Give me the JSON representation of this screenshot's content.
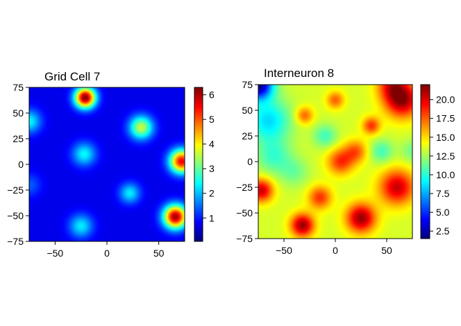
{
  "chart_data": [
    {
      "type": "heatmap",
      "title": "Grid Cell 7",
      "xlabel": "",
      "ylabel": "",
      "xlim": [
        -75,
        75
      ],
      "ylim": [
        -75,
        75
      ],
      "x_ticks": [
        -50,
        0,
        50
      ],
      "x_tick_labels": [
        "−50",
        "0",
        "50"
      ],
      "y_ticks": [
        75,
        50,
        25,
        0,
        -25,
        -50,
        -75
      ],
      "y_tick_labels": [
        "75",
        "50",
        "25",
        "0",
        "−25",
        "−50",
        "−75"
      ],
      "colorbar": {
        "colormap": "jet",
        "range": [
          0.05,
          6.3
        ],
        "ticks": [
          1,
          2,
          3,
          4,
          5,
          6
        ],
        "tick_labels": [
          "1",
          "2",
          "3",
          "4",
          "5",
          "6"
        ]
      },
      "baseline": 0.7,
      "peaks": [
        {
          "x": -21,
          "y": 65,
          "value": 6.3,
          "sigma": 7
        },
        {
          "x": 72,
          "y": 3,
          "value": 5.6,
          "sigma": 8
        },
        {
          "x": 66,
          "y": -51,
          "value": 6.1,
          "sigma": 8
        },
        {
          "x": 33,
          "y": 36,
          "value": 3.6,
          "sigma": 8
        },
        {
          "x": -22,
          "y": 10,
          "value": 2.4,
          "sigma": 8
        },
        {
          "x": 22,
          "y": -28,
          "value": 2.3,
          "sigma": 7
        },
        {
          "x": -25,
          "y": -60,
          "value": 2.3,
          "sigma": 8
        },
        {
          "x": -75,
          "y": 42,
          "value": 2.4,
          "sigma": 8
        },
        {
          "x": -75,
          "y": -20,
          "value": 1.4,
          "sigma": 8
        }
      ]
    },
    {
      "type": "heatmap",
      "title": "Interneuron 8",
      "xlabel": "",
      "ylabel": "",
      "xlim": [
        -75,
        75
      ],
      "ylim": [
        -75,
        75
      ],
      "x_ticks": [
        -50,
        0,
        50
      ],
      "x_tick_labels": [
        "−50",
        "0",
        "50"
      ],
      "y_ticks": [
        75,
        50,
        25,
        0,
        -25,
        -50,
        -75
      ],
      "y_tick_labels": [
        "75",
        "50",
        "25",
        "0",
        "−25",
        "−50",
        "−75"
      ],
      "colorbar": {
        "colormap": "jet",
        "range": [
          1.5,
          22
        ],
        "ticks": [
          2.5,
          5.0,
          7.5,
          10.0,
          12.5,
          15.0,
          17.5,
          20.0
        ],
        "tick_labels": [
          "2.5",
          "5.0",
          "7.5",
          "10.0",
          "12.5",
          "15.0",
          "17.5",
          "20.0"
        ]
      },
      "baseline": 13.5,
      "peaks": [
        {
          "x": -75,
          "y": 75,
          "value": -12,
          "sigma": 10
        },
        {
          "x": -65,
          "y": 40,
          "value": -5,
          "sigma": 15
        },
        {
          "x": -60,
          "y": 5,
          "value": -3,
          "sigma": 12
        },
        {
          "x": 65,
          "y": 60,
          "value": 8,
          "sigma": 12
        },
        {
          "x": 55,
          "y": 75,
          "value": 5,
          "sigma": 10
        },
        {
          "x": 60,
          "y": -25,
          "value": 7,
          "sigma": 12
        },
        {
          "x": 25,
          "y": -55,
          "value": 8,
          "sigma": 10
        },
        {
          "x": -32,
          "y": -62,
          "value": 8,
          "sigma": 8
        },
        {
          "x": -72,
          "y": -28,
          "value": 7,
          "sigma": 8
        },
        {
          "x": 5,
          "y": 0,
          "value": 5,
          "sigma": 9
        },
        {
          "x": -15,
          "y": -35,
          "value": 5,
          "sigma": 8
        },
        {
          "x": 35,
          "y": 35,
          "value": 5,
          "sigma": 6
        },
        {
          "x": 20,
          "y": 10,
          "value": 4,
          "sigma": 8
        },
        {
          "x": -30,
          "y": 45,
          "value": 4,
          "sigma": 6
        },
        {
          "x": 0,
          "y": 60,
          "value": 4,
          "sigma": 6
        },
        {
          "x": -10,
          "y": 25,
          "value": -3,
          "sigma": 8
        },
        {
          "x": 45,
          "y": 10,
          "value": -3,
          "sigma": 8
        },
        {
          "x": -40,
          "y": -10,
          "value": -2,
          "sigma": 10
        },
        {
          "x": 75,
          "y": 10,
          "value": -2,
          "sigma": 8
        }
      ]
    }
  ]
}
